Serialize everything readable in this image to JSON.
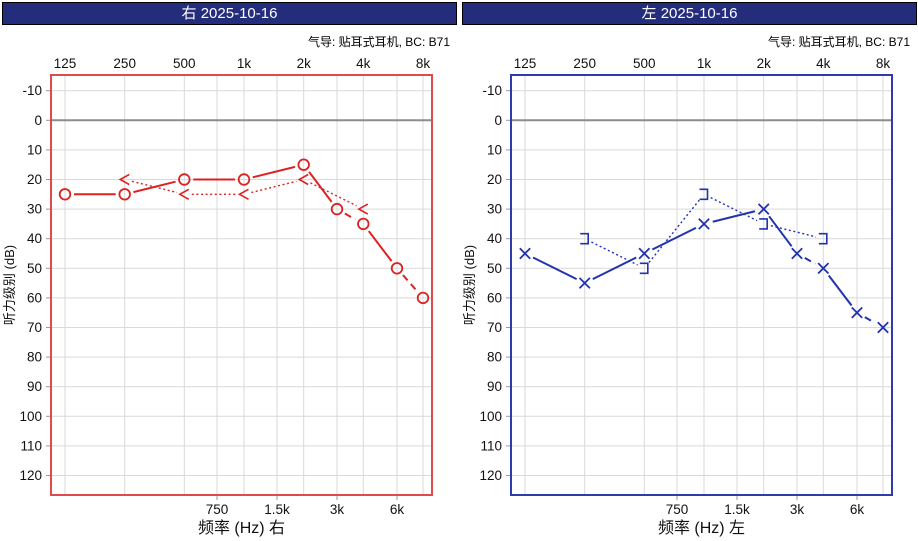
{
  "colors": {
    "right_accent": "#dd2222",
    "right_border": "#e04a4a",
    "left_accent": "#2233ae",
    "left_border": "#2e3aad",
    "header_bg": "#232d7b",
    "grid": "#d9d9d9",
    "zero_line": "#8c8c8c",
    "text": "#111111"
  },
  "panels": [
    {
      "id": "right-ear",
      "header": "右 2025-10-16",
      "subtitle": "气导: 贴耳式耳机, BC: B71",
      "xlabel": "频率 (Hz) 右",
      "ylabel": "听力级别 (dB)",
      "accent": "#dd2222",
      "border": "#e04a4a",
      "chart_data": {
        "type": "line",
        "x_ticks_top": [
          "125",
          "250",
          "500",
          "1k",
          "2k",
          "4k",
          "8k"
        ],
        "x_ticks_bottom": [
          "750",
          "1.5k",
          "3k",
          "6k"
        ],
        "ylim": [
          -10,
          120
        ],
        "grid": true,
        "series": [
          {
            "name": "air-conduction-right",
            "marker": "circle",
            "style": "solid",
            "segment_styles": [
              "solid",
              "solid",
              "solid",
              "solid",
              "solid",
              "dashed",
              "solid",
              "dashed"
            ],
            "points": [
              [
                125,
                25
              ],
              [
                250,
                25
              ],
              [
                500,
                20
              ],
              [
                1000,
                20
              ],
              [
                2000,
                15
              ],
              [
                3000,
                30
              ],
              [
                4000,
                35
              ],
              [
                6000,
                50
              ],
              [
                8000,
                60
              ]
            ]
          },
          {
            "name": "bone-conduction-right",
            "marker": "<",
            "style": "dotted",
            "points": [
              [
                250,
                20
              ],
              [
                500,
                25
              ],
              [
                1000,
                25
              ],
              [
                2000,
                20
              ],
              [
                4000,
                30
              ]
            ]
          }
        ]
      }
    },
    {
      "id": "left-ear",
      "header": "左 2025-10-16",
      "subtitle": "气导: 贴耳式耳机, BC: B71",
      "xlabel": "频率 (Hz) 左",
      "ylabel": "听力级别 (dB)",
      "accent": "#2233ae",
      "border": "#2e3aad",
      "chart_data": {
        "type": "line",
        "x_ticks_top": [
          "125",
          "250",
          "500",
          "1k",
          "2k",
          "4k",
          "8k"
        ],
        "x_ticks_bottom": [
          "750",
          "1.5k",
          "3k",
          "6k"
        ],
        "ylim": [
          -10,
          120
        ],
        "grid": true,
        "series": [
          {
            "name": "air-conduction-left",
            "marker": "x",
            "style": "solid",
            "segment_styles": [
              "solid",
              "solid",
              "solid",
              "solid",
              "solid",
              "dashed",
              "solid",
              "dashed"
            ],
            "points": [
              [
                125,
                45
              ],
              [
                250,
                55
              ],
              [
                500,
                45
              ],
              [
                1000,
                35
              ],
              [
                2000,
                30
              ],
              [
                3000,
                45
              ],
              [
                4000,
                50
              ],
              [
                6000,
                65
              ],
              [
                8000,
                70
              ]
            ]
          },
          {
            "name": "bone-conduction-left",
            "marker": "]",
            "style": "dotted",
            "points": [
              [
                250,
                40
              ],
              [
                500,
                50
              ],
              [
                1000,
                25
              ],
              [
                2000,
                35
              ],
              [
                4000,
                40
              ]
            ]
          }
        ]
      }
    }
  ]
}
